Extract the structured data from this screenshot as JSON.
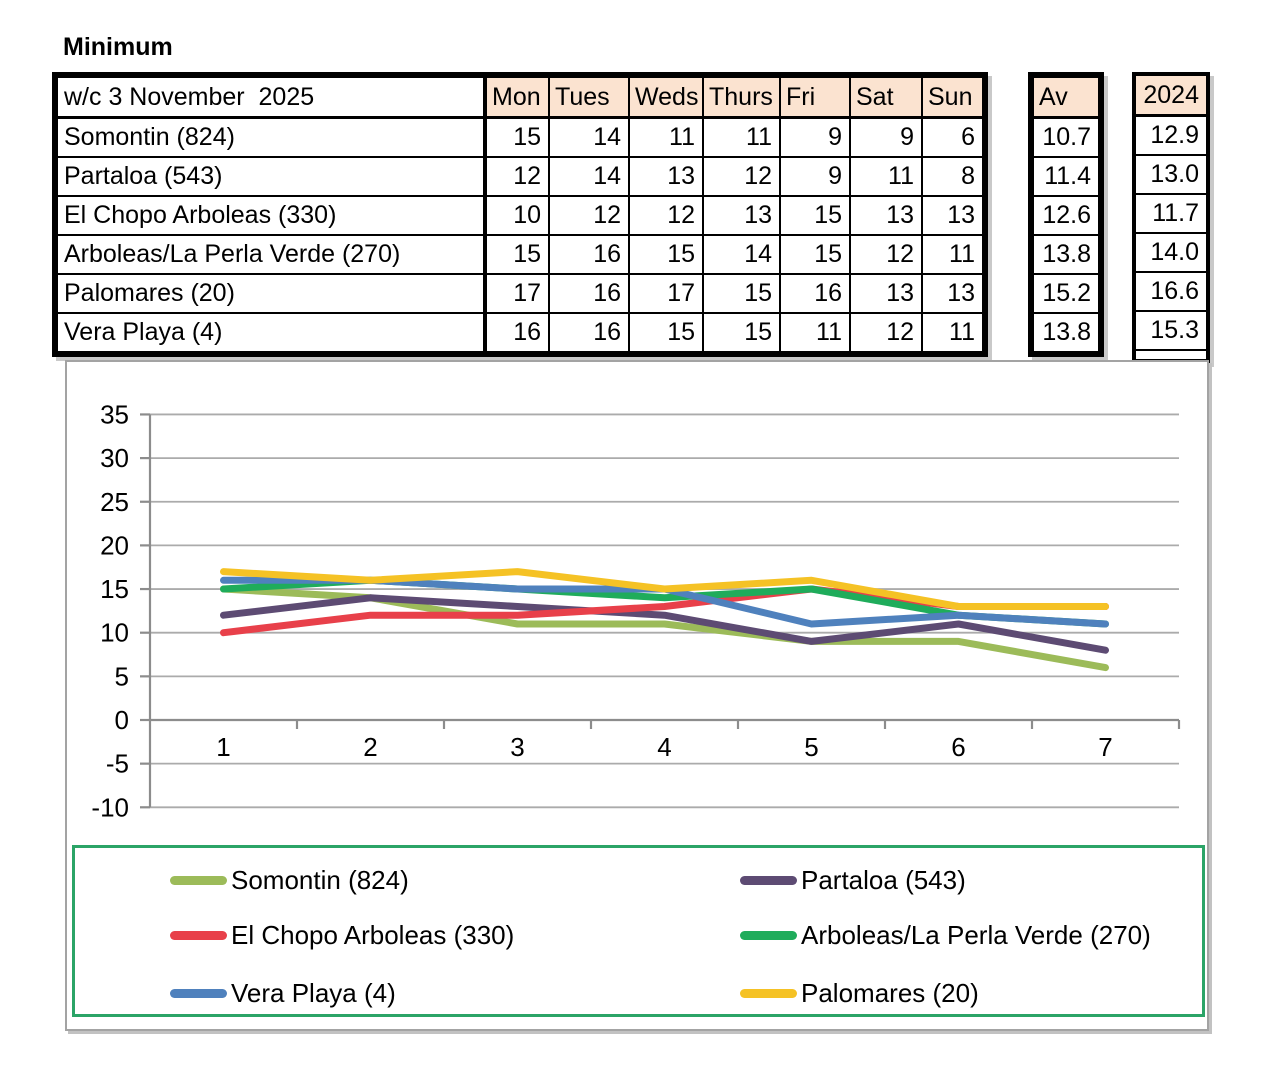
{
  "title": "Minimum",
  "table": {
    "header": {
      "label": "w/c 3 November  2025",
      "days": [
        "Mon",
        "Tues",
        "Weds",
        "Thurs",
        "Fri",
        "Sat",
        "Sun"
      ],
      "av": "Av",
      "year": "2024"
    },
    "rows": [
      {
        "name": "Somontin (824)",
        "values": [
          15,
          14,
          11,
          11,
          9,
          9,
          6
        ],
        "av": "10.7",
        "year": "12.9"
      },
      {
        "name": "Partaloa (543)",
        "values": [
          12,
          14,
          13,
          12,
          9,
          11,
          8
        ],
        "av": "11.4",
        "year": "13.0"
      },
      {
        "name": "El Chopo Arboleas (330)",
        "values": [
          10,
          12,
          12,
          13,
          15,
          13,
          13
        ],
        "av": "12.6",
        "year": "11.7"
      },
      {
        "name": "Arboleas/La Perla Verde (270)",
        "values": [
          15,
          16,
          15,
          14,
          15,
          12,
          11
        ],
        "av": "13.8",
        "year": "14.0"
      },
      {
        "name": "Palomares (20)",
        "values": [
          17,
          16,
          17,
          15,
          16,
          13,
          13
        ],
        "av": "15.2",
        "year": "16.6"
      },
      {
        "name": "Vera Playa (4)",
        "values": [
          16,
          16,
          15,
          15,
          11,
          12,
          11
        ],
        "av": "13.8",
        "year": "15.3"
      }
    ]
  },
  "chart_data": {
    "type": "line",
    "title": "",
    "xlabel": "",
    "ylabel": "",
    "x": [
      1,
      2,
      3,
      4,
      5,
      6,
      7
    ],
    "ylim": [
      -10,
      35
    ],
    "ytick_step": 5,
    "grid": true,
    "legend_position": "bottom",
    "series": [
      {
        "name": "Somontin (824)",
        "color": "#9cbb59",
        "values": [
          15,
          14,
          11,
          11,
          9,
          9,
          6
        ]
      },
      {
        "name": "Partaloa (543)",
        "color": "#5d4b73",
        "values": [
          12,
          14,
          13,
          12,
          9,
          11,
          8
        ]
      },
      {
        "name": "El Chopo Arboleas (330)",
        "color": "#e8404a",
        "values": [
          10,
          12,
          12,
          13,
          15,
          13,
          13
        ]
      },
      {
        "name": "Arboleas/La Perla Verde (270)",
        "color": "#1fac5b",
        "values": [
          15,
          16,
          15,
          14,
          15,
          12,
          11
        ]
      },
      {
        "name": "Vera Playa (4)",
        "color": "#4f81bd",
        "values": [
          16,
          16,
          15,
          15,
          11,
          12,
          11
        ]
      },
      {
        "name": "Palomares (20)",
        "color": "#f5c225",
        "values": [
          17,
          16,
          17,
          15,
          16,
          13,
          13
        ]
      }
    ]
  },
  "colors": {
    "header_fill": "#fbe3d0",
    "table_border": "#000000",
    "gridline": "#ababab",
    "axis": "#8c8c8c",
    "chart_border": "#a3a3a3",
    "legend_border": "#2ba467"
  }
}
